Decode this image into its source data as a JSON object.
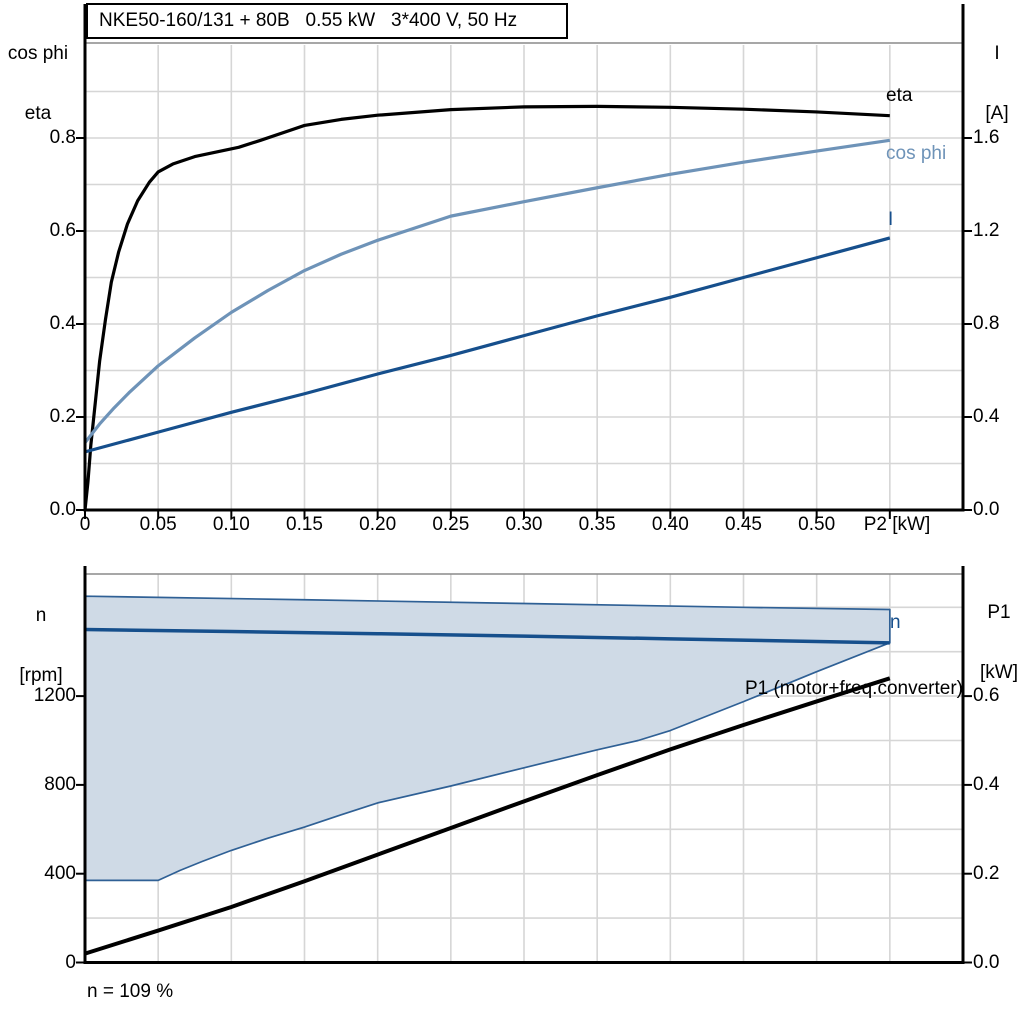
{
  "colors": {
    "eta_curve": "#000000",
    "cos_phi_curve": "#6e93b8",
    "current_curve": "#164f8c",
    "speed_curve": "#164f8c",
    "p1_curve": "#000000",
    "envelope_fill": "#cfdae6",
    "envelope_edge": "#2f6095",
    "grid": "#d6d6d6",
    "frame": "#8a8a8a",
    "axis": "#000000"
  },
  "chart_data": [
    {
      "type": "line",
      "title": "NKE50-160/131 + 80B   0.55 kW   3*400 V, 50 Hz",
      "x_axis": {
        "label": "P2 [kW]",
        "lim": [
          0,
          0.6
        ],
        "ticks": [
          "0",
          "0.05",
          "0.10",
          "0.15",
          "0.20",
          "0.25",
          "0.30",
          "0.35",
          "0.40",
          "0.45",
          "0.50"
        ]
      },
      "left_axis": {
        "title_lines": [
          "cos phi",
          "eta"
        ],
        "lim": [
          0,
          1.0
        ],
        "ticks": [
          "0.0",
          "0.2",
          "0.4",
          "0.6",
          "0.8"
        ]
      },
      "right_axis": {
        "title_lines": [
          "I",
          "[A]"
        ],
        "lim": [
          0,
          2.0
        ],
        "ticks": [
          "0.0",
          "0.4",
          "0.8",
          "1.2",
          "1.6"
        ]
      },
      "grid": "on",
      "series": [
        {
          "name": "eta",
          "axis": "left",
          "color": "#000000",
          "width": 3.2,
          "x": [
            0,
            0.002,
            0.004,
            0.007,
            0.01,
            0.014,
            0.018,
            0.023,
            0.029,
            0.036,
            0.044,
            0.05,
            0.06,
            0.075,
            0.09,
            0.105,
            0.12,
            0.15,
            0.175,
            0.2,
            0.25,
            0.3,
            0.35,
            0.4,
            0.45,
            0.5,
            0.55
          ],
          "y": [
            0,
            0.06,
            0.14,
            0.23,
            0.32,
            0.41,
            0.49,
            0.555,
            0.615,
            0.665,
            0.705,
            0.727,
            0.744,
            0.76,
            0.77,
            0.78,
            0.795,
            0.827,
            0.84,
            0.849,
            0.861,
            0.867,
            0.868,
            0.866,
            0.862,
            0.856,
            0.848
          ]
        },
        {
          "name": "cos phi",
          "axis": "left",
          "color": "#6e93b8",
          "width": 3.2,
          "x": [
            0,
            0.01,
            0.02,
            0.03,
            0.05,
            0.075,
            0.1,
            0.125,
            0.15,
            0.175,
            0.2,
            0.25,
            0.3,
            0.35,
            0.4,
            0.45,
            0.5,
            0.55
          ],
          "y": [
            0.145,
            0.185,
            0.22,
            0.252,
            0.31,
            0.37,
            0.425,
            0.472,
            0.515,
            0.55,
            0.58,
            0.632,
            0.663,
            0.693,
            0.722,
            0.748,
            0.772,
            0.795
          ]
        },
        {
          "name": "I",
          "axis": "right",
          "color": "#164f8c",
          "width": 3.2,
          "x": [
            0,
            0.05,
            0.1,
            0.15,
            0.2,
            0.25,
            0.3,
            0.35,
            0.4,
            0.45,
            0.5,
            0.55
          ],
          "y": [
            0.25,
            0.335,
            0.42,
            0.5,
            0.585,
            0.665,
            0.75,
            0.835,
            0.915,
            1.0,
            1.085,
            1.17
          ]
        }
      ]
    },
    {
      "type": "line",
      "x_axis": {
        "label": "",
        "lim": [
          0,
          0.6
        ],
        "ticks": []
      },
      "left_axis": {
        "title_lines": [
          "n",
          "[rpm]"
        ],
        "lim": [
          0,
          1750
        ],
        "ticks": [
          "0",
          "400",
          "800",
          "1200"
        ]
      },
      "right_axis": {
        "title_lines": [
          "P1",
          "[kW]"
        ],
        "lim": [
          0,
          0.875
        ],
        "ticks": [
          "0.0",
          "0.2",
          "0.4",
          "0.6"
        ]
      },
      "grid": "on",
      "annotation": "n = 109 %",
      "envelope": {
        "axis": "left",
        "upper_x": [
          0,
          0.15,
          0.3,
          0.45,
          0.55
        ],
        "upper_y": [
          1650,
          1634,
          1617,
          1600,
          1590
        ],
        "lower_x": [
          0,
          0.05,
          0.065,
          0.08,
          0.1,
          0.125,
          0.15,
          0.175,
          0.2,
          0.25,
          0.3,
          0.35,
          0.378,
          0.4,
          0.45,
          0.5,
          0.55
        ],
        "lower_y": [
          370,
          370,
          415,
          455,
          505,
          560,
          610,
          665,
          719,
          795,
          877,
          958,
          1000,
          1045,
          1175,
          1310,
          1440
        ]
      },
      "series": [
        {
          "name": "n",
          "axis": "left",
          "color": "#164f8c",
          "width": 3.5,
          "x": [
            0,
            0.1,
            0.2,
            0.3,
            0.4,
            0.5,
            0.55
          ],
          "y": [
            1500,
            1491,
            1481,
            1470,
            1458,
            1446,
            1440
          ]
        },
        {
          "name": "P1 (motor+freq.converter)",
          "axis": "right",
          "color": "#000000",
          "width": 4,
          "x": [
            0,
            0.05,
            0.1,
            0.15,
            0.2,
            0.25,
            0.3,
            0.35,
            0.4,
            0.45,
            0.5,
            0.55
          ],
          "y": [
            0.02,
            0.072,
            0.125,
            0.183,
            0.243,
            0.303,
            0.363,
            0.422,
            0.48,
            0.535,
            0.588,
            0.64
          ]
        }
      ]
    }
  ]
}
